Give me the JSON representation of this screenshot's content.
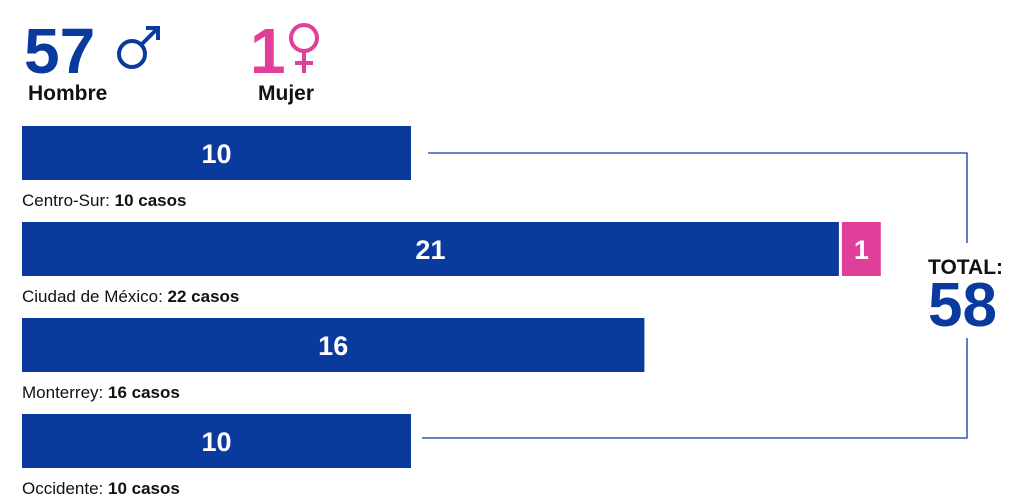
{
  "chart_data": {
    "type": "stacked_bar_horizontal",
    "summary": {
      "male_count": 57,
      "female_count": 1,
      "total_label": "TOTAL:",
      "total": 58
    },
    "categories": [
      "Centro-Sur:",
      "Ciudad de México:",
      "Monterrey:",
      "Occidente:"
    ],
    "category_totals": [
      "10 casos",
      "22 casos",
      "16 casos",
      "10 casos"
    ],
    "series": [
      {
        "name": "Hombre",
        "color": "#0b3a9e",
        "values": [
          10,
          21,
          16,
          10
        ]
      },
      {
        "name": "Mujer",
        "color": "#df3f98",
        "values": [
          null,
          1,
          null,
          null
        ]
      }
    ]
  }
}
